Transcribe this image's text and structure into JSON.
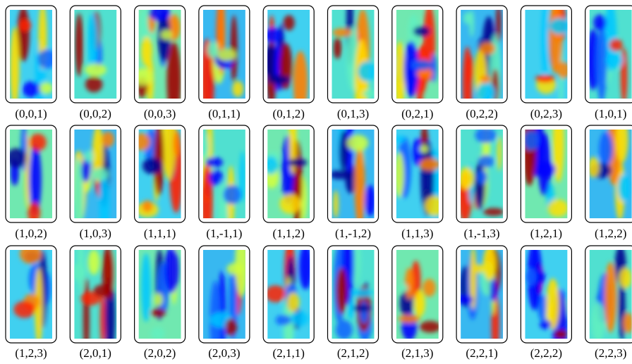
{
  "figure": {
    "labels": [
      "(0,0,1)",
      "(0,0,2)",
      "(0,0,3)",
      "(0,1,1)",
      "(0,1,2)",
      "(0,1,3)",
      "(0,2,1)",
      "(0,2,2)",
      "(0,2,3)",
      "(1,0,1)",
      "(1,0,2)",
      "(1,0,3)",
      "(1,1,1)",
      "(1,-1,1)",
      "(1,1,2)",
      "(1,-1,2)",
      "(1,1,3)",
      "(1,-1,3)",
      "(1,2,1)",
      "(1,2,2)",
      "(1,2,3)",
      "(2,0,1)",
      "(2,0,2)",
      "(2,0,3)",
      "(2,1,1)",
      "(2,1,2)",
      "(2,1,3)",
      "(2,2,1)",
      "(2,2,2)",
      "(2,2,3)"
    ]
  }
}
